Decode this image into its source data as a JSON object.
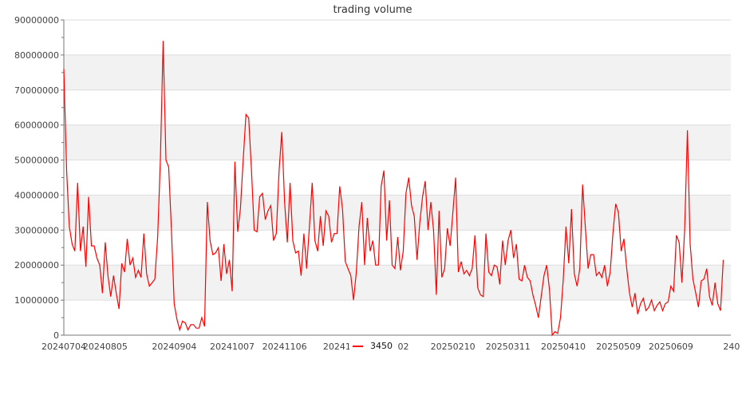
{
  "chart_data": {
    "type": "line",
    "title": "trading volume",
    "xlabel": "",
    "ylabel": "",
    "ylim": [
      0,
      90000000
    ],
    "y_ticks": [
      "0",
      "10000000",
      "20000000",
      "30000000",
      "40000000",
      "50000000",
      "60000000",
      "70000000",
      "80000000",
      "90000000"
    ],
    "x_tick_labels": [
      {
        "label": "20240704",
        "index": 0
      },
      {
        "label": "20240805",
        "index": 15
      },
      {
        "label": "20240904",
        "index": 40
      },
      {
        "label": "20241007",
        "index": 61
      },
      {
        "label": "20241106",
        "index": 80
      },
      {
        "label": "202412",
        "index": 100
      },
      {
        "label": "0102",
        "index": 121
      },
      {
        "label": "20250210",
        "index": 141
      },
      {
        "label": "20250311",
        "index": 161
      },
      {
        "label": "20250410",
        "index": 181
      },
      {
        "label": "20250509",
        "index": 201
      },
      {
        "label": "20250609",
        "index": 220
      },
      {
        "label": "240",
        "index": 242
      }
    ],
    "grid": true,
    "band_color": "#f2f2f2",
    "legend_position": "bottom",
    "series": [
      {
        "name": "3450",
        "color": "#ff0000",
        "values": [
          76000000,
          47000000,
          31000000,
          26000000,
          24000000,
          43500000,
          24000000,
          31000000,
          19500000,
          39500000,
          25500000,
          25500000,
          22000000,
          20000000,
          12000000,
          26500000,
          17000000,
          11000000,
          17000000,
          12000000,
          7500000,
          20500000,
          18000000,
          27500000,
          20000000,
          22000000,
          16500000,
          18500000,
          16500000,
          29000000,
          17500000,
          14000000,
          15000000,
          16000000,
          28000000,
          50000000,
          84000000,
          50000000,
          48000000,
          30000000,
          9000000,
          4500000,
          1500000,
          4000000,
          3500000,
          1500000,
          3000000,
          3000000,
          2000000,
          2000000,
          5000000,
          2500000,
          38000000,
          27000000,
          23000000,
          23500000,
          25000000,
          15500000,
          26000000,
          17500000,
          21500000,
          12500000,
          49500000,
          29500000,
          36000000,
          50000000,
          63000000,
          62000000,
          47000000,
          30000000,
          29500000,
          39500000,
          40500000,
          33000000,
          35500000,
          37000000,
          27000000,
          29000000,
          47000000,
          58000000,
          38000000,
          26500000,
          43500000,
          27000000,
          23500000,
          24000000,
          17000000,
          29000000,
          19000000,
          31000000,
          43500000,
          27000000,
          24000000,
          34000000,
          25500000,
          35500000,
          34000000,
          26500000,
          29000000,
          29000000,
          42500000,
          36000000,
          21000000,
          19000000,
          17000000,
          10000000,
          18000000,
          31000000,
          38000000,
          20000000,
          33500000,
          24000000,
          27000000,
          20000000,
          20000000,
          42500000,
          47000000,
          27000000,
          38500000,
          20000000,
          19000000,
          28000000,
          18500000,
          24000000,
          40500000,
          45000000,
          37000000,
          34000000,
          21500000,
          32000000,
          39500000,
          44000000,
          30000000,
          38000000,
          30000000,
          11500000,
          35500000,
          16500000,
          19000000,
          30500000,
          25500000,
          35000000,
          45000000,
          18000000,
          21000000,
          17500000,
          18500000,
          17000000,
          19000000,
          28500000,
          13500000,
          11500000,
          11000000,
          29000000,
          18000000,
          17000000,
          20000000,
          19500000,
          14500000,
          27000000,
          20000000,
          27000000,
          30000000,
          22000000,
          26000000,
          16000000,
          15500000,
          20000000,
          16500000,
          15500000,
          11500000,
          8500000,
          5000000,
          11000000,
          17000000,
          20000000,
          13000000,
          0,
          1000000,
          500000,
          5000000,
          16000000,
          31000000,
          20500000,
          36000000,
          17500000,
          14000000,
          19000000,
          43000000,
          31000000,
          19000000,
          23000000,
          23000000,
          17000000,
          18000000,
          16500000,
          20000000,
          14000000,
          18000000,
          29000000,
          37500000,
          35000000,
          24000000,
          27500000,
          19000000,
          12000000,
          8000000,
          12000000,
          6000000,
          9000000,
          10500000,
          7000000,
          8000000,
          10000000,
          7000000,
          8500000,
          9500000,
          7000000,
          9000000,
          9500000,
          14000000,
          12500000,
          28500000,
          26500000,
          15000000,
          30000000,
          58500000,
          26000000,
          16000000,
          12000000,
          8000000,
          15500000,
          16000000,
          19000000,
          11000000,
          8500000,
          15000000,
          9000000,
          7000000,
          21500000
        ]
      }
    ]
  }
}
